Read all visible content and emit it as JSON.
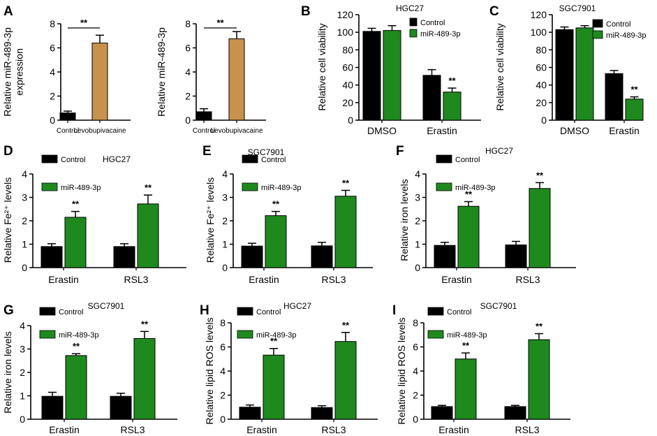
{
  "colors": {
    "control": "#000000",
    "levo": "#c8924c",
    "mir": "#1e8a1e",
    "axis": "#000000"
  },
  "chart_data": [
    {
      "type": "bar",
      "panel_letter": "A",
      "panel": "A1",
      "title": "",
      "ylabel_lines": [
        "Relative miR-489-3p",
        "expression"
      ],
      "ylim": [
        0,
        8
      ],
      "yticks": [
        0,
        2,
        4,
        6,
        8
      ],
      "categories": [
        "Control",
        "Levobupivacaine"
      ],
      "values": [
        0.6,
        6.4
      ],
      "errors": [
        0.15,
        0.65
      ],
      "bar_colors": [
        "control",
        "levo"
      ],
      "significance": [
        {
          "label": "**",
          "bracket": true,
          "from": 0,
          "to": 1
        }
      ]
    },
    {
      "type": "bar",
      "panel_letter": "",
      "panel": "A2",
      "title": "",
      "ylabel_lines": [
        "Relative miR-489-3p"
      ],
      "ylim": [
        0,
        8
      ],
      "yticks": [
        0,
        2,
        4,
        6,
        8
      ],
      "categories": [
        "Control",
        "Levobupivacaine"
      ],
      "values": [
        0.7,
        6.75
      ],
      "errors": [
        0.25,
        0.6
      ],
      "bar_colors": [
        "control",
        "levo"
      ],
      "significance": [
        {
          "label": "**",
          "bracket": true,
          "from": 0,
          "to": 1
        }
      ]
    },
    {
      "type": "bar",
      "panel_letter": "B",
      "panel": "B",
      "title": "HGC27",
      "ylabel_lines": [
        "Relative cell viability"
      ],
      "ylim": [
        0,
        120
      ],
      "yticks": [
        0,
        20,
        40,
        60,
        80,
        100,
        120
      ],
      "categories": [
        "DMSO",
        "Erastin"
      ],
      "series": [
        {
          "name": "Control",
          "color": "control",
          "values": [
            101,
            51
          ],
          "errors": [
            3.5,
            6.5
          ]
        },
        {
          "name": "miR-489-3p",
          "color": "mir",
          "values": [
            102,
            32
          ],
          "errors": [
            5.5,
            4.5
          ]
        }
      ],
      "sig_labels": [
        "",
        "**"
      ]
    },
    {
      "type": "bar",
      "panel_letter": "C",
      "panel": "C",
      "title": "SGC7901",
      "ylabel_lines": [
        "Relative cell viability"
      ],
      "ylim": [
        0,
        120
      ],
      "yticks": [
        0,
        20,
        40,
        60,
        80,
        100,
        120
      ],
      "categories": [
        "DMSO",
        "Erastin"
      ],
      "series": [
        {
          "name": "Control",
          "color": "control",
          "values": [
            103,
            53
          ],
          "errors": [
            3.0,
            3.5
          ]
        },
        {
          "name": "miR-489-3p",
          "color": "mir",
          "values": [
            105,
            24
          ],
          "errors": [
            2.5,
            2.5
          ]
        }
      ],
      "sig_labels": [
        "",
        "**"
      ]
    },
    {
      "type": "bar",
      "panel_letter": "D",
      "panel": "D",
      "title": "HGC27",
      "ylabel_lines": [
        "Relative Fe²⁺ levels"
      ],
      "ylim": [
        0,
        4
      ],
      "yticks": [
        0,
        1,
        2,
        3,
        4
      ],
      "categories": [
        "Erastin",
        "RSL3"
      ],
      "series": [
        {
          "name": "Control",
          "color": "control",
          "values": [
            0.9,
            0.9
          ],
          "errors": [
            0.12,
            0.12
          ]
        },
        {
          "name": "miR-489-3p",
          "color": "mir",
          "values": [
            2.15,
            2.72
          ],
          "errors": [
            0.25,
            0.38
          ]
        }
      ],
      "sig_labels": [
        "**",
        "**"
      ]
    },
    {
      "type": "bar",
      "panel_letter": "E",
      "panel": "E",
      "title": "SGC7901",
      "ylabel_lines": [
        "Relative Fe²⁺ levels"
      ],
      "ylim": [
        0,
        4
      ],
      "yticks": [
        0,
        1,
        2,
        3,
        4
      ],
      "categories": [
        "Erastin",
        "RSL3"
      ],
      "series": [
        {
          "name": "Control",
          "color": "control",
          "values": [
            0.92,
            0.93
          ],
          "errors": [
            0.12,
            0.15
          ]
        },
        {
          "name": "miR-489-3p",
          "color": "mir",
          "values": [
            2.22,
            3.05
          ],
          "errors": [
            0.18,
            0.25
          ]
        }
      ],
      "sig_labels": [
        "**",
        "**"
      ]
    },
    {
      "type": "bar",
      "panel_letter": "F",
      "panel": "F",
      "title": "HGC27",
      "ylabel_lines": [
        "Relative iron levels"
      ],
      "ylim": [
        0,
        4
      ],
      "yticks": [
        0,
        1,
        2,
        3,
        4
      ],
      "categories": [
        "Erastin",
        "RSL3"
      ],
      "series": [
        {
          "name": "Control",
          "color": "control",
          "values": [
            0.95,
            0.97
          ],
          "errors": [
            0.13,
            0.15
          ]
        },
        {
          "name": "miR-489-3p",
          "color": "mir",
          "values": [
            2.62,
            3.38
          ],
          "errors": [
            0.2,
            0.25
          ]
        }
      ],
      "sig_labels": [
        "**",
        "**"
      ]
    },
    {
      "type": "bar",
      "panel_letter": "G",
      "panel": "G",
      "title": "SGC7901",
      "ylabel_lines": [
        "Relative iron levels"
      ],
      "ylim": [
        0,
        4
      ],
      "yticks": [
        0,
        1,
        2,
        3,
        4
      ],
      "categories": [
        "Erastin",
        "RSL3"
      ],
      "series": [
        {
          "name": "Control",
          "color": "control",
          "values": [
            0.98,
            0.98
          ],
          "errors": [
            0.17,
            0.13
          ]
        },
        {
          "name": "miR-489-3p",
          "color": "mir",
          "values": [
            2.72,
            3.45
          ],
          "errors": [
            0.08,
            0.3
          ]
        }
      ],
      "sig_labels": [
        "**",
        "**"
      ]
    },
    {
      "type": "bar",
      "panel_letter": "H",
      "panel": "H",
      "title": "HGC27",
      "ylabel_lines": [
        "Relative lipid ROS levels"
      ],
      "ylim": [
        0,
        8
      ],
      "yticks": [
        0,
        2,
        4,
        6,
        8
      ],
      "categories": [
        "Erastin",
        "RSL3"
      ],
      "series": [
        {
          "name": "Control",
          "color": "control",
          "values": [
            1.0,
            0.97
          ],
          "errors": [
            0.18,
            0.15
          ]
        },
        {
          "name": "miR-489-3p",
          "color": "mir",
          "values": [
            5.32,
            6.45
          ],
          "errors": [
            0.55,
            0.75
          ]
        }
      ],
      "sig_labels": [
        "**",
        "**"
      ]
    },
    {
      "type": "bar",
      "panel_letter": "I",
      "panel": "I",
      "title": "SGC7901",
      "ylabel_lines": [
        "Relative lipid ROS levels"
      ],
      "ylim": [
        0,
        8
      ],
      "yticks": [
        0,
        2,
        4,
        6,
        8
      ],
      "categories": [
        "Erastin",
        "RSL3"
      ],
      "series": [
        {
          "name": "Control",
          "color": "control",
          "values": [
            1.05,
            1.05
          ],
          "errors": [
            0.1,
            0.1
          ]
        },
        {
          "name": "miR-489-3p",
          "color": "mir",
          "values": [
            5.0,
            6.6
          ],
          "errors": [
            0.5,
            0.5
          ]
        }
      ],
      "sig_labels": [
        "**",
        "**"
      ]
    }
  ]
}
